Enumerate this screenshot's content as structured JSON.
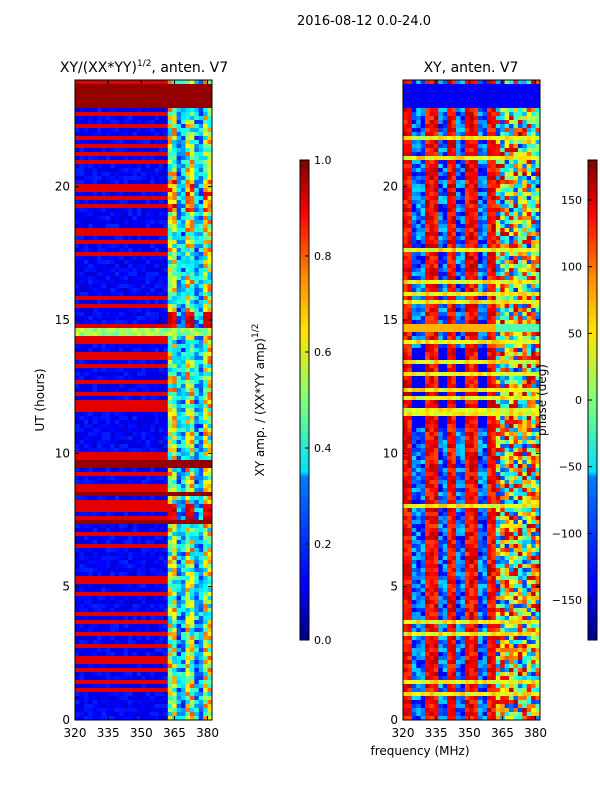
{
  "figure": {
    "suptitle": "2016-08-12 0.0-24.0",
    "xlabel": "frequency (MHz)"
  },
  "chart_data": [
    {
      "type": "heatmap",
      "title": "XY/(XX*YY)",
      "title_exponent": "1/2",
      "title_suffix": ", anten. V7",
      "xlabel": "",
      "ylabel": "UT (hours)",
      "x_ticks": [
        320,
        335,
        350,
        365,
        380
      ],
      "y_ticks": [
        0,
        5,
        10,
        15,
        20
      ],
      "xlim": [
        320,
        382
      ],
      "ylim": [
        0,
        24
      ],
      "colorbar": {
        "label": "XY amp. / (XX*YY amp)",
        "label_exponent": "1/2",
        "ticks": [
          "0.0",
          "0.2",
          "0.4",
          "0.6",
          "0.8",
          "1.0"
        ],
        "range": [
          0.0,
          1.0
        ]
      },
      "features": {
        "background_value": 0.1,
        "saturated_bands_hours": [
          [
            22.9,
            23.8
          ],
          [
            9.4,
            9.8
          ],
          [
            8.4,
            8.6
          ],
          [
            7.3,
            7.5
          ]
        ],
        "bright_line_hour": 14.6,
        "active_freq_range_mhz": [
          362,
          382
        ]
      }
    },
    {
      "type": "heatmap",
      "title": "XY, anten. V7",
      "xlabel": "",
      "ylabel": "",
      "x_ticks": [
        320,
        335,
        350,
        365,
        380
      ],
      "y_ticks": [
        0,
        5,
        10,
        15,
        20
      ],
      "xlim": [
        320,
        382
      ],
      "ylim": [
        0,
        24
      ],
      "colorbar": {
        "label": "phase (deg)",
        "ticks": [
          "150",
          "100",
          "50",
          "0",
          "−50",
          "−100",
          "−150"
        ],
        "range": [
          -180,
          180
        ]
      },
      "features": {
        "stripe_freqs_mhz": [
          322,
          333,
          342,
          351,
          360
        ],
        "bright_line_hour": 14.7,
        "dark_band_hours": [
          23.0,
          23.8
        ]
      }
    }
  ]
}
